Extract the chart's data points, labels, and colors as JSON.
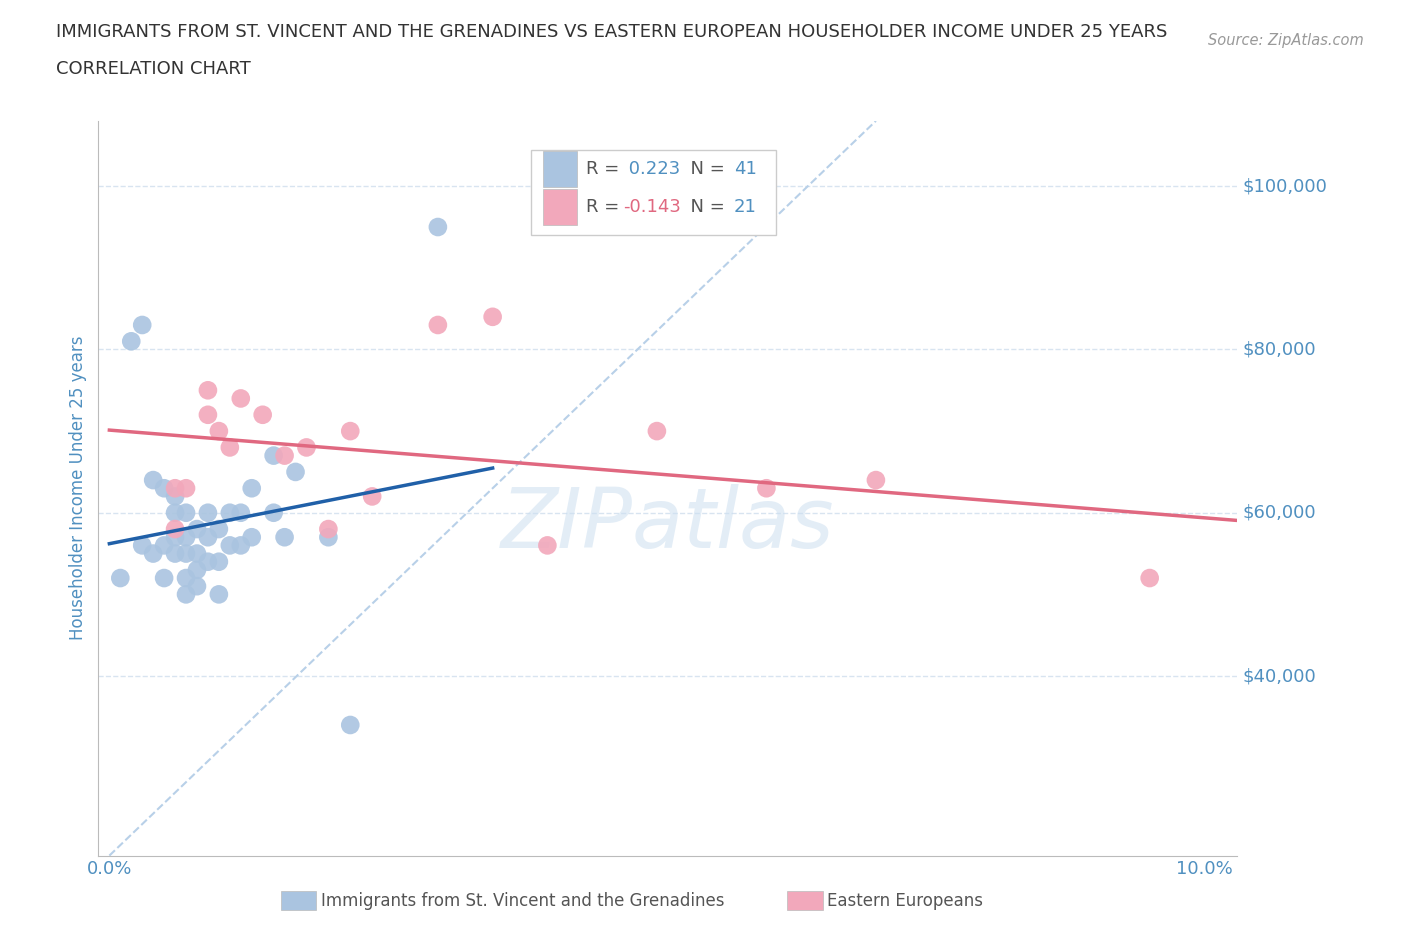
{
  "title_line1": "IMMIGRANTS FROM ST. VINCENT AND THE GRENADINES VS EASTERN EUROPEAN HOUSEHOLDER INCOME UNDER 25 YEARS",
  "title_line2": "CORRELATION CHART",
  "source": "Source: ZipAtlas.com",
  "ylabel": "Householder Income Under 25 years",
  "xlim": [
    -0.001,
    0.103
  ],
  "ylim": [
    18000,
    108000
  ],
  "yticks": [
    40000,
    60000,
    80000,
    100000
  ],
  "ytick_labels": [
    "$40,000",
    "$60,000",
    "$80,000",
    "$100,000"
  ],
  "r_blue": 0.223,
  "n_blue": 41,
  "r_pink": -0.143,
  "n_pink": 21,
  "blue_color": "#aac4e0",
  "pink_color": "#f2a8bb",
  "blue_line_color": "#2060a8",
  "pink_line_color": "#e06880",
  "grid_color": "#d8e4f0",
  "watermark": "ZIPatlas",
  "blue_scatter_x": [
    0.001,
    0.002,
    0.003,
    0.003,
    0.004,
    0.004,
    0.005,
    0.005,
    0.005,
    0.006,
    0.006,
    0.006,
    0.006,
    0.007,
    0.007,
    0.007,
    0.007,
    0.007,
    0.008,
    0.008,
    0.008,
    0.008,
    0.009,
    0.009,
    0.009,
    0.01,
    0.01,
    0.01,
    0.011,
    0.011,
    0.012,
    0.012,
    0.013,
    0.013,
    0.015,
    0.015,
    0.016,
    0.017,
    0.02,
    0.022,
    0.03
  ],
  "blue_scatter_y": [
    52000,
    81000,
    83000,
    56000,
    64000,
    55000,
    63000,
    56000,
    52000,
    62000,
    60000,
    57000,
    55000,
    60000,
    57000,
    55000,
    52000,
    50000,
    58000,
    55000,
    53000,
    51000,
    60000,
    57000,
    54000,
    58000,
    54000,
    50000,
    60000,
    56000,
    60000,
    56000,
    63000,
    57000,
    67000,
    60000,
    57000,
    65000,
    57000,
    34000,
    95000
  ],
  "pink_scatter_x": [
    0.006,
    0.006,
    0.007,
    0.009,
    0.009,
    0.01,
    0.011,
    0.012,
    0.014,
    0.016,
    0.018,
    0.02,
    0.022,
    0.024,
    0.03,
    0.035,
    0.04,
    0.05,
    0.06,
    0.07,
    0.095
  ],
  "pink_scatter_y": [
    63000,
    58000,
    63000,
    72000,
    75000,
    70000,
    68000,
    74000,
    72000,
    67000,
    68000,
    58000,
    70000,
    62000,
    83000,
    84000,
    56000,
    70000,
    63000,
    64000,
    52000
  ],
  "legend_label_blue": "Immigrants from St. Vincent and the Grenadines",
  "legend_label_pink": "Eastern Europeans",
  "background_color": "#ffffff",
  "title_color": "#333333",
  "axis_label_color": "#5090c0",
  "tick_color": "#5090c0",
  "ref_line_color": "#b8d0e8"
}
